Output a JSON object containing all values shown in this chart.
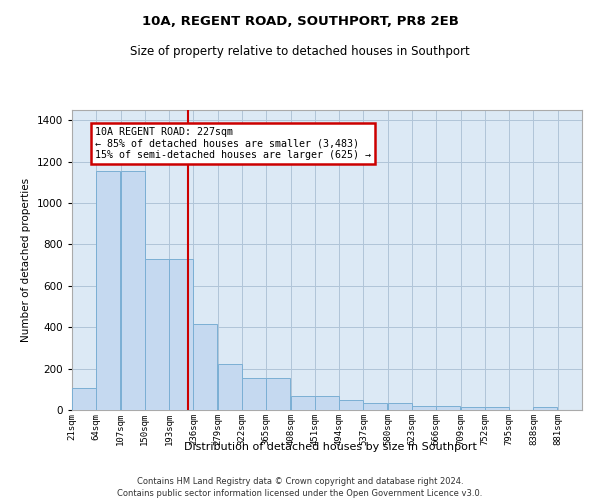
{
  "title": "10A, REGENT ROAD, SOUTHPORT, PR8 2EB",
  "subtitle": "Size of property relative to detached houses in Southport",
  "xlabel": "Distribution of detached houses by size in Southport",
  "ylabel": "Number of detached properties",
  "footer_line1": "Contains HM Land Registry data © Crown copyright and database right 2024.",
  "footer_line2": "Contains public sector information licensed under the Open Government Licence v3.0.",
  "annotation_line1": "10A REGENT ROAD: 227sqm",
  "annotation_line2": "← 85% of detached houses are smaller (3,483)",
  "annotation_line3": "15% of semi-detached houses are larger (625) →",
  "property_line_x": 227,
  "bar_color": "#c5d9f0",
  "bar_edge_color": "#7bafd4",
  "property_line_color": "#cc0000",
  "annotation_box_edge_color": "#cc0000",
  "background_color": "#ffffff",
  "plot_bg_color": "#dce9f5",
  "grid_color": "#b0c4d8",
  "categories": [
    "21sqm",
    "64sqm",
    "107sqm",
    "150sqm",
    "193sqm",
    "236sqm",
    "279sqm",
    "322sqm",
    "365sqm",
    "408sqm",
    "451sqm",
    "494sqm",
    "537sqm",
    "580sqm",
    "623sqm",
    "666sqm",
    "709sqm",
    "752sqm",
    "795sqm",
    "838sqm",
    "881sqm"
  ],
  "bin_edges": [
    21,
    64,
    107,
    150,
    193,
    236,
    279,
    322,
    365,
    408,
    451,
    494,
    537,
    580,
    623,
    666,
    709,
    752,
    795,
    838,
    881,
    924
  ],
  "values": [
    105,
    1155,
    1155,
    730,
    730,
    415,
    220,
    155,
    155,
    70,
    70,
    48,
    35,
    35,
    20,
    20,
    15,
    15,
    0,
    15,
    0
  ],
  "ylim": [
    0,
    1450
  ],
  "yticks": [
    0,
    200,
    400,
    600,
    800,
    1000,
    1200,
    1400
  ]
}
